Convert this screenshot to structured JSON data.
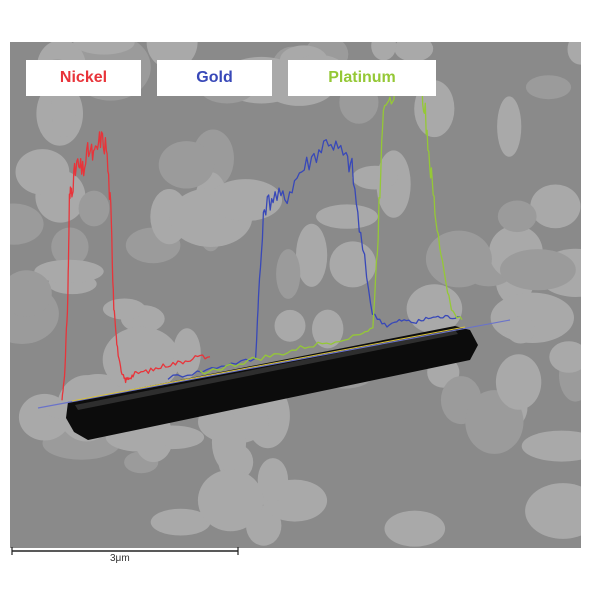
{
  "chart_data": {
    "type": "line",
    "title": "",
    "xlabel": "",
    "ylabel": "",
    "legend_placement": "top",
    "grid": false,
    "background": "SEM micrograph of a nanowire on a holey support film",
    "scale_bar": {
      "label": "3μm",
      "length_um": 3
    },
    "x_range": [
      0,
      1
    ],
    "y_range": [
      0,
      1
    ],
    "series": [
      {
        "name": "Nickel",
        "color": "#e8343a",
        "x": [
          0.0,
          0.02,
          0.04,
          0.05,
          0.07,
          0.1,
          0.14,
          0.18,
          0.22,
          0.26,
          0.3,
          0.33,
          0.35,
          0.37,
          0.4,
          0.43,
          0.46,
          0.5,
          0.6,
          0.7,
          0.8,
          0.9,
          1.0
        ],
        "y": [
          0.0,
          0.12,
          0.42,
          0.78,
          0.84,
          0.91,
          0.88,
          0.96,
          0.93,
          1.0,
          0.96,
          0.7,
          0.35,
          0.18,
          0.06,
          0.03,
          0.04,
          0.05,
          0.05,
          0.06,
          0.06,
          0.07,
          0.06
        ]
      },
      {
        "name": "Gold",
        "color": "#3848b8",
        "x": [
          0.0,
          0.1,
          0.2,
          0.3,
          0.31,
          0.33,
          0.36,
          0.4,
          0.45,
          0.5,
          0.55,
          0.6,
          0.63,
          0.66,
          0.7,
          0.75,
          0.8,
          0.85,
          0.9,
          0.95,
          1.0
        ],
        "y": [
          0.01,
          0.01,
          0.02,
          0.02,
          0.28,
          0.66,
          0.7,
          0.68,
          0.78,
          0.84,
          0.9,
          0.82,
          0.76,
          0.45,
          0.12,
          0.06,
          0.07,
          0.05,
          0.06,
          0.05,
          0.04
        ]
      },
      {
        "name": "Platinum",
        "color": "#95c836",
        "x": [
          0.0,
          0.1,
          0.2,
          0.3,
          0.4,
          0.5,
          0.6,
          0.66,
          0.68,
          0.7,
          0.73,
          0.76,
          0.8,
          0.84,
          0.86,
          0.88,
          0.9,
          0.93,
          0.96,
          1.0
        ],
        "y": [
          0.01,
          0.01,
          0.02,
          0.02,
          0.03,
          0.03,
          0.04,
          0.05,
          0.42,
          0.9,
          0.93,
          0.96,
          1.0,
          0.97,
          0.82,
          0.6,
          0.42,
          0.22,
          0.06,
          0.02
        ]
      }
    ]
  }
}
